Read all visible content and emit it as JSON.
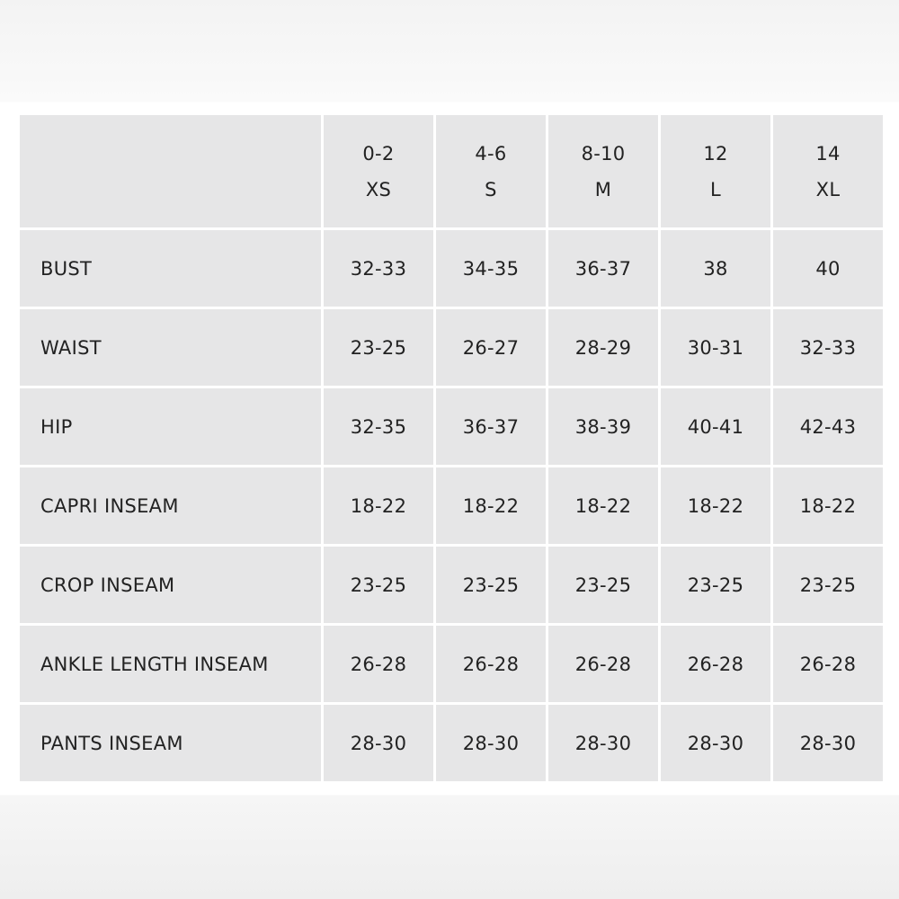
{
  "table": {
    "header": [
      {
        "number": "0-2",
        "size": "XS"
      },
      {
        "number": "4-6",
        "size": "S"
      },
      {
        "number": "8-10",
        "size": "M"
      },
      {
        "number": "12",
        "size": "L"
      },
      {
        "number": "14",
        "size": "XL"
      }
    ],
    "rows": [
      {
        "label": "BUST",
        "values": [
          "32-33",
          "34-35",
          "36-37",
          "38",
          "40"
        ]
      },
      {
        "label": "WAIST",
        "values": [
          "23-25",
          "26-27",
          "28-29",
          "30-31",
          "32-33"
        ]
      },
      {
        "label": "HIP",
        "values": [
          "32-35",
          "36-37",
          "38-39",
          "40-41",
          "42-43"
        ]
      },
      {
        "label": "CAPRI INSEAM",
        "values": [
          "18-22",
          "18-22",
          "18-22",
          "18-22",
          "18-22"
        ]
      },
      {
        "label": "CROP INSEAM",
        "values": [
          "23-25",
          "23-25",
          "23-25",
          "23-25",
          "23-25"
        ]
      },
      {
        "label": "ANKLE LENGTH INSEAM",
        "values": [
          "26-28",
          "26-28",
          "26-28",
          "26-28",
          "26-28"
        ]
      },
      {
        "label": "PANTS INSEAM",
        "values": [
          "28-30",
          "28-30",
          "28-30",
          "28-30",
          "28-30"
        ]
      }
    ]
  }
}
